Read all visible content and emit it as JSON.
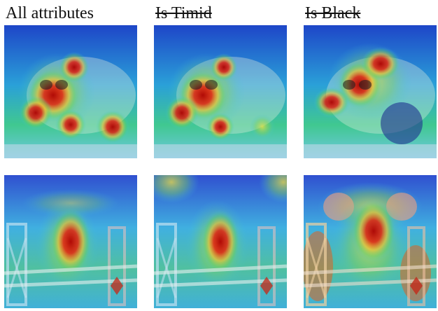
{
  "columns": [
    {
      "label": "All attributes",
      "struck": false
    },
    {
      "label": "Is Timid",
      "struck": true
    },
    {
      "label": "Is Black",
      "struck": true
    }
  ],
  "rows": [
    {
      "subject": "panda"
    },
    {
      "subject": "horse-rider"
    }
  ],
  "colors": {
    "heat_red": "#d01010",
    "heat_yellow": "#f0e040",
    "heat_green": "#40c070",
    "heat_cyan": "#40c8e8",
    "heat_blue": "#2040c8"
  }
}
